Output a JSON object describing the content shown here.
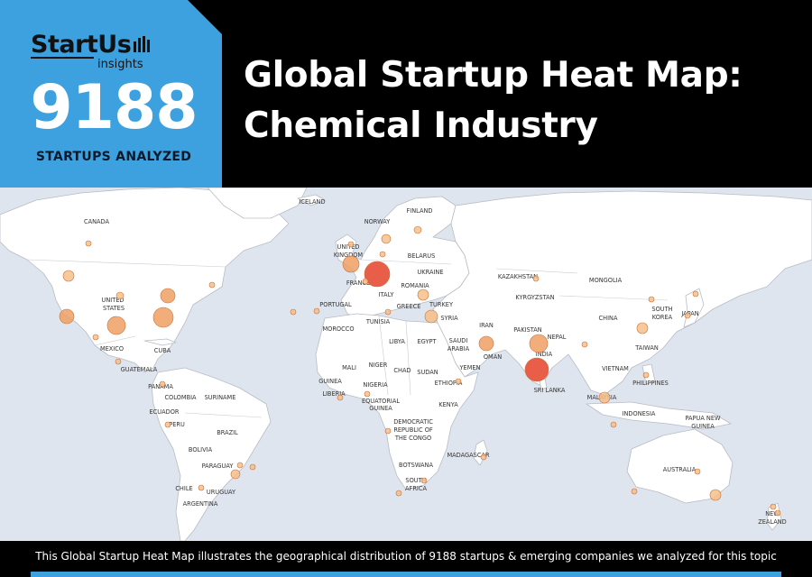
{
  "brand": {
    "logo_text": "StartUs",
    "logo_sub": "insights"
  },
  "stats": {
    "count": "9188",
    "count_label": "STARTUPS ANALYZED"
  },
  "title": {
    "line1": "Global Startup Heat Map:",
    "line2": "Chemical Industry"
  },
  "footer": {
    "caption": "This Global Startup Heat Map illustrates the geographical distribution of 9188 startups & emerging companies we analyzed for this topic"
  },
  "colors": {
    "accent": "#3da1e0",
    "land": "#ffffff",
    "water": "#dfe5ee",
    "border": "#b8bcc4",
    "hot": "#e8553e",
    "warm": "#eea064",
    "cool": "#f6c08a"
  },
  "map": {
    "labels": [
      {
        "text": "CANADA"
      },
      {
        "text": "ICELAND"
      },
      {
        "text": "NORWAY"
      },
      {
        "text": "FINLAND"
      },
      {
        "text": "UNITED"
      },
      {
        "text": "KINGDOM"
      },
      {
        "text": "BELARUS"
      },
      {
        "text": "UKRAINE"
      },
      {
        "text": "KAZAKHSTAN"
      },
      {
        "text": "MONGOLIA"
      },
      {
        "text": "FRANCE"
      },
      {
        "text": "ITALY"
      },
      {
        "text": "ROMANIA"
      },
      {
        "text": "KYRGYZSTAN"
      },
      {
        "text": "UNITED"
      },
      {
        "text": "STATES"
      },
      {
        "text": "PORTUGAL"
      },
      {
        "text": "GREECE"
      },
      {
        "text": "TURKEY"
      },
      {
        "text": "SOUTH"
      },
      {
        "text": "KOREA"
      },
      {
        "text": "JAPAN"
      },
      {
        "text": "TUNISIA"
      },
      {
        "text": "SYRIA"
      },
      {
        "text": "CHINA"
      },
      {
        "text": "MOROCCO"
      },
      {
        "text": "IRAN"
      },
      {
        "text": "MEXICO"
      },
      {
        "text": "CUBA"
      },
      {
        "text": "LIBYA"
      },
      {
        "text": "EGYPT"
      },
      {
        "text": "SAUDI"
      },
      {
        "text": "ARABIA"
      },
      {
        "text": "PAKISTAN"
      },
      {
        "text": "NEPAL"
      },
      {
        "text": "INDIA"
      },
      {
        "text": "TAIWAN"
      },
      {
        "text": "OMAN"
      },
      {
        "text": "GUATEMALA"
      },
      {
        "text": "MALI"
      },
      {
        "text": "NIGER"
      },
      {
        "text": "CHAD"
      },
      {
        "text": "SUDAN"
      },
      {
        "text": "YEMEN"
      },
      {
        "text": "VIETNAM"
      },
      {
        "text": "PANAMA"
      },
      {
        "text": "GUINEA"
      },
      {
        "text": "NIGERIA"
      },
      {
        "text": "ETHIOPIA"
      },
      {
        "text": "PHILIPPINES"
      },
      {
        "text": "COLOMBIA"
      },
      {
        "text": "SURINAME"
      },
      {
        "text": "LIBERIA"
      },
      {
        "text": "EQUATORIAL"
      },
      {
        "text": "GUINEA"
      },
      {
        "text": "SRI LANKA"
      },
      {
        "text": "ECUADOR"
      },
      {
        "text": "KENYA"
      },
      {
        "text": "MALAYSIA"
      },
      {
        "text": "PERU"
      },
      {
        "text": "DEMOCRATIC"
      },
      {
        "text": "REPUBLIC OF"
      },
      {
        "text": "THE CONGO"
      },
      {
        "text": "INDONESIA"
      },
      {
        "text": "PAPUA NEW"
      },
      {
        "text": "GUINEA"
      },
      {
        "text": "BRAZIL"
      },
      {
        "text": "BOLIVIA"
      },
      {
        "text": "MADAGASCAR"
      },
      {
        "text": "PARAGUAY"
      },
      {
        "text": "BOTSWANA"
      },
      {
        "text": "AUSTRALIA"
      },
      {
        "text": "SOUTH"
      },
      {
        "text": "AFRICA"
      },
      {
        "text": "CHILE"
      },
      {
        "text": "URUGUAY"
      },
      {
        "text": "ARGENTINA"
      },
      {
        "text": "NEW"
      },
      {
        "text": "ZEALAND"
      }
    ],
    "hubs": [
      {
        "level": "hot"
      },
      {
        "level": "hot"
      },
      {
        "level": "warm"
      },
      {
        "level": "warm"
      },
      {
        "level": "warm"
      },
      {
        "level": "warm"
      },
      {
        "level": "warm"
      },
      {
        "level": "warm"
      },
      {
        "level": "warm"
      },
      {
        "level": "cool"
      },
      {
        "level": "cool"
      },
      {
        "level": "cool"
      },
      {
        "level": "cool"
      },
      {
        "level": "cool"
      },
      {
        "level": "cool"
      },
      {
        "level": "cool"
      },
      {
        "level": "cool"
      },
      {
        "level": "cool"
      },
      {
        "level": "cool"
      },
      {
        "level": "cool"
      },
      {
        "level": "cool"
      },
      {
        "level": "cool"
      },
      {
        "level": "cool"
      },
      {
        "level": "cool"
      },
      {
        "level": "cool"
      },
      {
        "level": "cool"
      },
      {
        "level": "cool"
      },
      {
        "level": "cool"
      },
      {
        "level": "cool"
      },
      {
        "level": "cool"
      },
      {
        "level": "cool"
      },
      {
        "level": "cool"
      },
      {
        "level": "cool"
      },
      {
        "level": "cool"
      },
      {
        "level": "cool"
      },
      {
        "level": "cool"
      },
      {
        "level": "cool"
      },
      {
        "level": "cool"
      },
      {
        "level": "cool"
      },
      {
        "level": "cool"
      },
      {
        "level": "cool"
      },
      {
        "level": "cool"
      },
      {
        "level": "cool"
      },
      {
        "level": "cool"
      },
      {
        "level": "cool"
      },
      {
        "level": "cool"
      },
      {
        "level": "cool"
      },
      {
        "level": "cool"
      },
      {
        "level": "cool"
      },
      {
        "level": "cool"
      },
      {
        "level": "cool"
      },
      {
        "level": "cool"
      }
    ]
  }
}
